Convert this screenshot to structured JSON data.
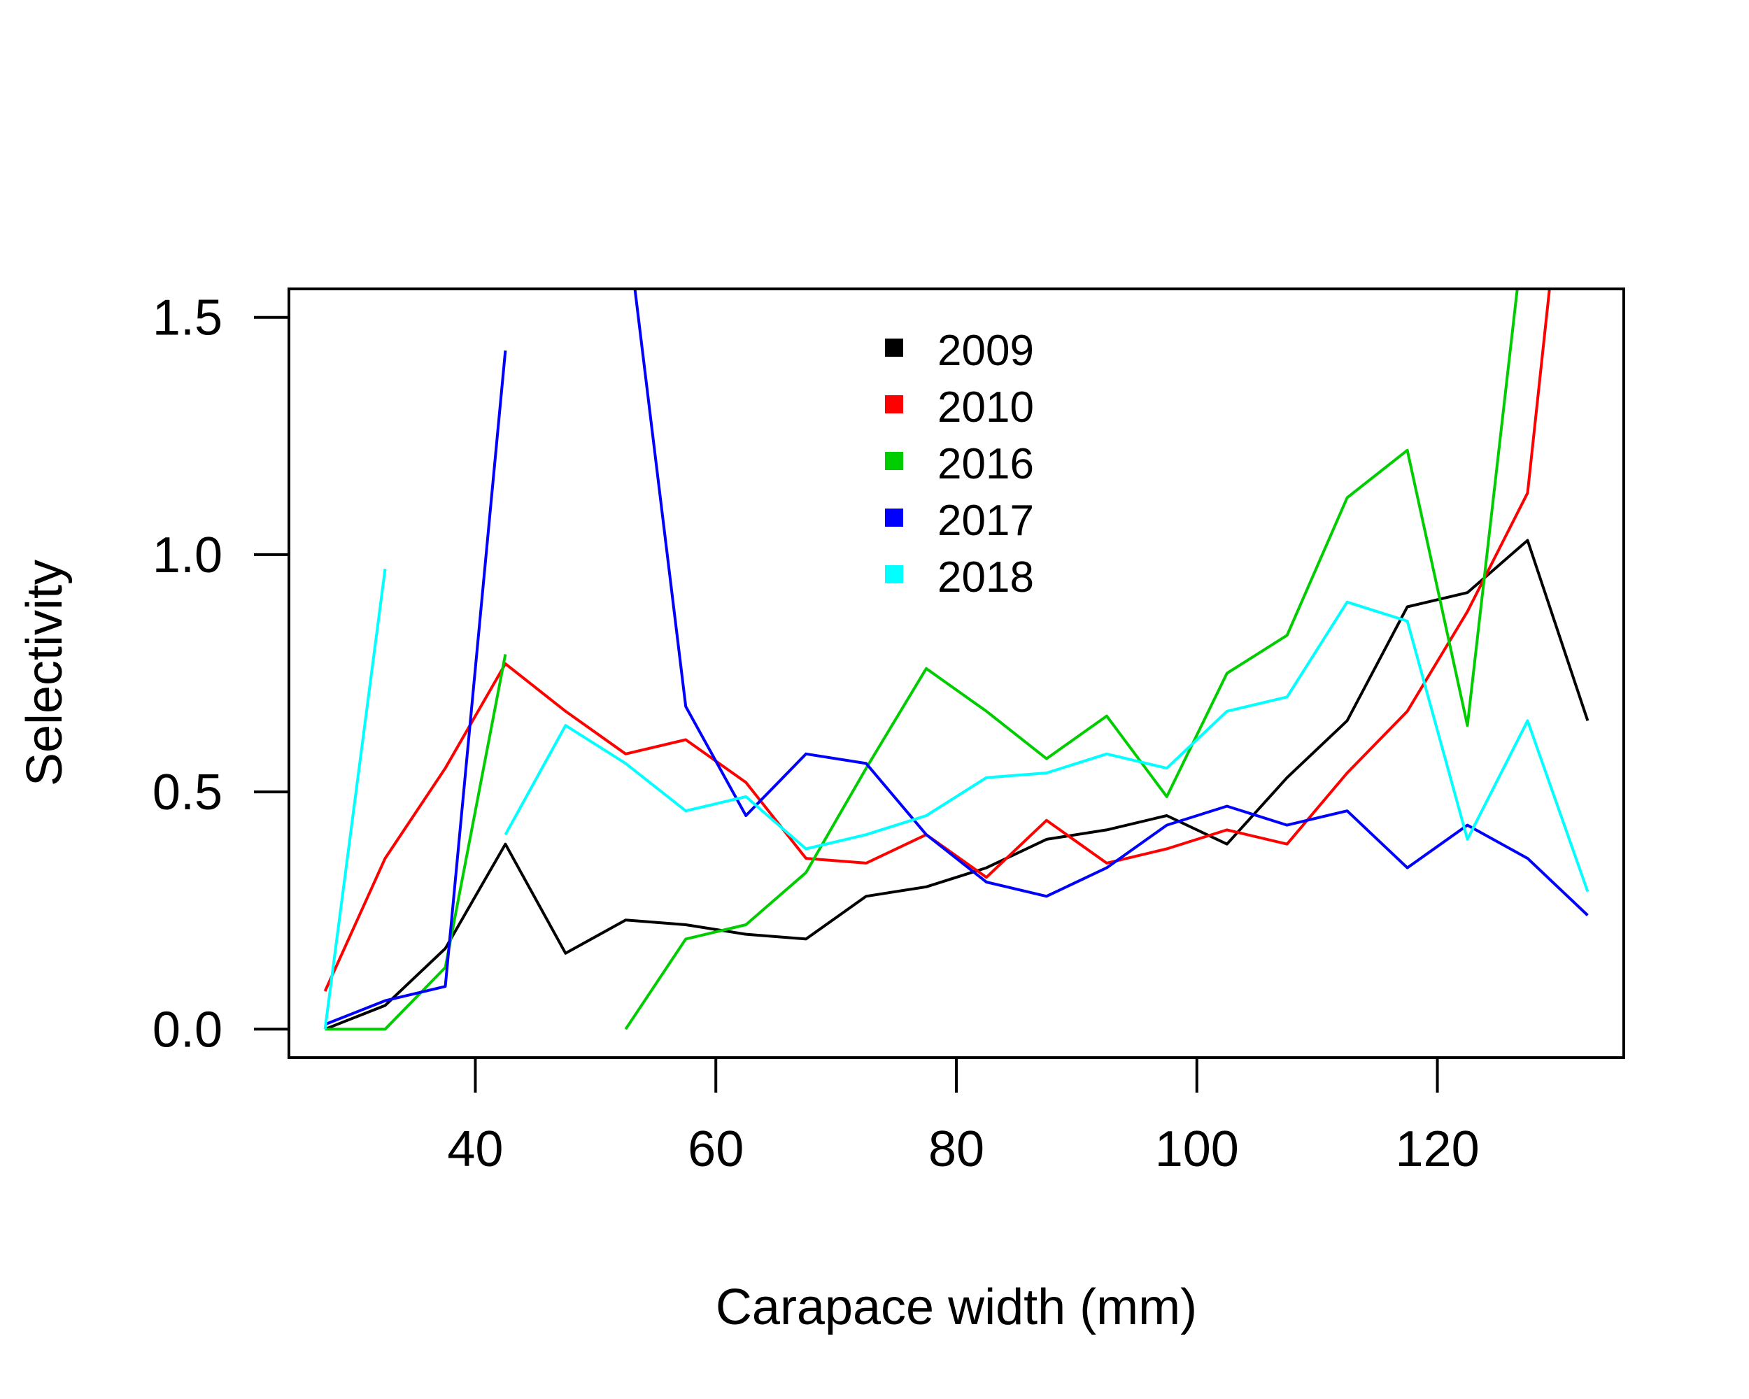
{
  "chart_data": {
    "type": "line",
    "xlabel": "Carapace width (mm)",
    "ylabel": "Selectivity",
    "xlim": [
      24.5,
      135.5
    ],
    "ylim": [
      -0.06,
      1.56
    ],
    "x_ticks": [
      40,
      60,
      80,
      100,
      120
    ],
    "x_tick_labels": [
      "40",
      "60",
      "80",
      "100",
      "120"
    ],
    "y_ticks": [
      0,
      0.5,
      1,
      1.5
    ],
    "y_tick_labels": [
      "0.0",
      "0.5",
      "1.0",
      "1.5"
    ],
    "grid": false,
    "legend_position": "top-center",
    "series": [
      {
        "name": "2009",
        "color": "#000000",
        "points": [
          [
            27.5,
            0.0
          ],
          [
            32.5,
            0.05
          ],
          [
            37.5,
            0.17
          ],
          [
            42.5,
            0.39
          ],
          [
            47.5,
            0.16
          ],
          [
            52.5,
            0.23
          ],
          [
            57.5,
            0.22
          ],
          [
            62.5,
            0.2
          ],
          [
            67.5,
            0.19
          ],
          [
            72.5,
            0.28
          ],
          [
            77.5,
            0.3
          ],
          [
            82.5,
            0.34
          ],
          [
            87.5,
            0.4
          ],
          [
            92.5,
            0.42
          ],
          [
            97.5,
            0.45
          ],
          [
            102.5,
            0.39
          ],
          [
            107.5,
            0.53
          ],
          [
            112.5,
            0.65
          ],
          [
            117.5,
            0.89
          ],
          [
            122.5,
            0.92
          ],
          [
            127.5,
            1.03
          ],
          [
            132.5,
            0.65
          ]
        ]
      },
      {
        "name": "2010",
        "color": "#ff0000",
        "points": [
          [
            27.5,
            0.08
          ],
          [
            32.5,
            0.36
          ],
          [
            37.5,
            0.55
          ],
          [
            42.5,
            0.77
          ],
          [
            47.5,
            0.67
          ],
          [
            52.5,
            0.58
          ],
          [
            57.5,
            0.61
          ],
          [
            62.5,
            0.52
          ],
          [
            67.5,
            0.36
          ],
          [
            72.5,
            0.35
          ],
          [
            77.5,
            0.41
          ],
          [
            82.5,
            0.32
          ],
          [
            87.5,
            0.44
          ],
          [
            92.5,
            0.35
          ],
          [
            97.5,
            0.38
          ],
          [
            102.5,
            0.42
          ],
          [
            107.5,
            0.39
          ],
          [
            112.5,
            0.54
          ],
          [
            117.5,
            0.67
          ],
          [
            122.5,
            0.88
          ],
          [
            127.5,
            1.13
          ],
          [
            130.0,
            1.72
          ]
        ]
      },
      {
        "name": "2016",
        "color": "#00cd00",
        "points": [
          [
            27.5,
            0.0
          ],
          [
            32.5,
            0.0
          ],
          [
            37.5,
            0.13
          ],
          [
            42.5,
            0.79
          ],
          [
            47.5,
            null
          ],
          [
            52.5,
            0.0
          ],
          [
            57.5,
            0.19
          ],
          [
            62.5,
            0.22
          ],
          [
            67.5,
            0.33
          ],
          [
            72.5,
            0.55
          ],
          [
            77.5,
            0.76
          ],
          [
            82.5,
            0.67
          ],
          [
            87.5,
            0.57
          ],
          [
            92.5,
            0.66
          ],
          [
            97.5,
            0.49
          ],
          [
            102.5,
            0.75
          ],
          [
            107.5,
            0.83
          ],
          [
            112.5,
            1.12
          ],
          [
            117.5,
            1.22
          ],
          [
            122.5,
            0.64
          ],
          [
            127.5,
            1.75
          ]
        ]
      },
      {
        "name": "2017",
        "color": "#0000ff",
        "points": [
          [
            27.5,
            0.01
          ],
          [
            32.5,
            0.06
          ],
          [
            37.5,
            0.09
          ],
          [
            42.5,
            1.43
          ],
          [
            47.5,
            null
          ],
          [
            52.5,
            1.72
          ],
          [
            57.5,
            0.68
          ],
          [
            62.5,
            0.45
          ],
          [
            67.5,
            0.58
          ],
          [
            72.5,
            0.56
          ],
          [
            77.5,
            0.41
          ],
          [
            82.5,
            0.31
          ],
          [
            87.5,
            0.28
          ],
          [
            92.5,
            0.34
          ],
          [
            97.5,
            0.43
          ],
          [
            102.5,
            0.47
          ],
          [
            107.5,
            0.43
          ],
          [
            112.5,
            0.46
          ],
          [
            117.5,
            0.34
          ],
          [
            122.5,
            0.43
          ],
          [
            127.5,
            0.36
          ],
          [
            132.5,
            0.24
          ]
        ]
      },
      {
        "name": "2018",
        "color": "#00ffff",
        "points": [
          [
            27.5,
            0.0
          ],
          [
            32.5,
            0.97
          ],
          [
            37.5,
            null
          ],
          [
            42.5,
            0.41
          ],
          [
            47.5,
            0.64
          ],
          [
            52.5,
            0.56
          ],
          [
            57.5,
            0.46
          ],
          [
            62.5,
            0.49
          ],
          [
            67.5,
            0.38
          ],
          [
            72.5,
            0.41
          ],
          [
            77.5,
            0.45
          ],
          [
            82.5,
            0.53
          ],
          [
            87.5,
            0.54
          ],
          [
            92.5,
            0.58
          ],
          [
            97.5,
            0.55
          ],
          [
            102.5,
            0.67
          ],
          [
            107.5,
            0.7
          ],
          [
            112.5,
            0.9
          ],
          [
            117.5,
            0.86
          ],
          [
            122.5,
            0.4
          ],
          [
            127.5,
            0.65
          ],
          [
            132.5,
            0.29
          ]
        ]
      }
    ]
  }
}
